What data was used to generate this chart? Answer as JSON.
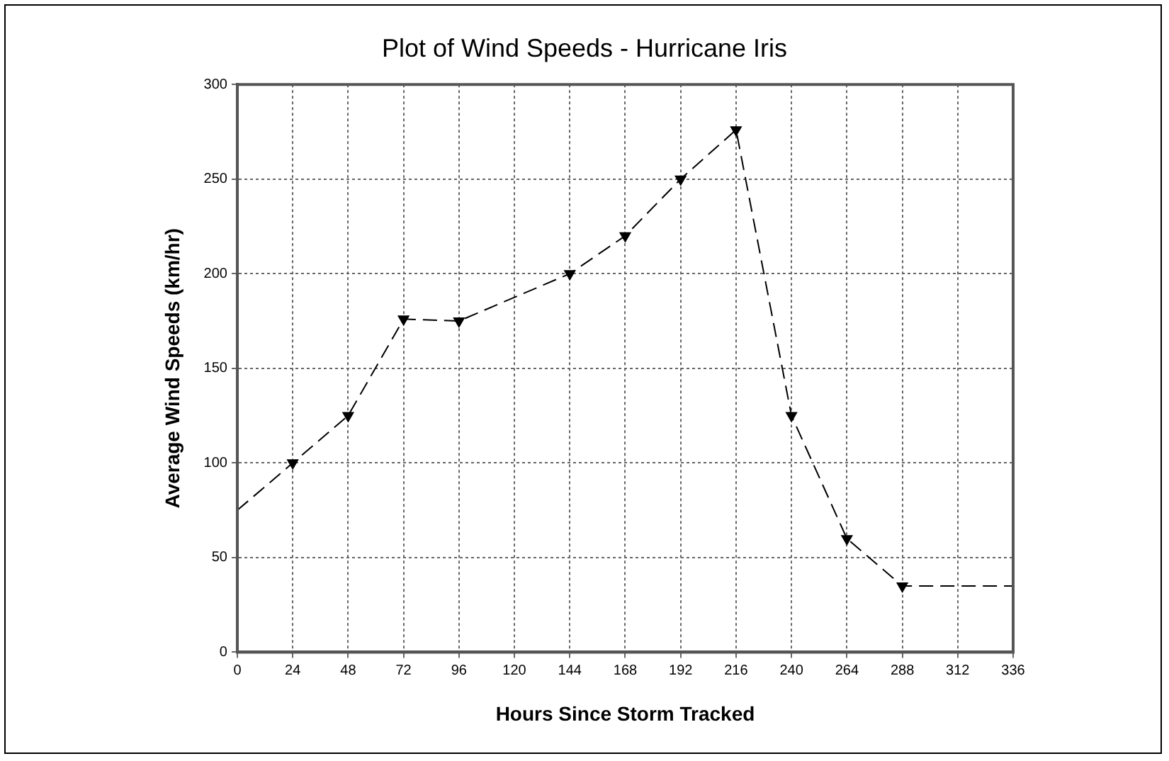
{
  "chart_data": {
    "type": "line",
    "title": "Plot of Wind Speeds - Hurricane Iris",
    "xlabel": "Hours Since Storm Tracked",
    "ylabel": "Average Wind Speeds (km/hr)",
    "xlim": [
      0,
      336
    ],
    "xticks": [
      0,
      24,
      48,
      72,
      96,
      120,
      144,
      168,
      192,
      216,
      240,
      264,
      288,
      312,
      336
    ],
    "ylim": [
      0,
      300
    ],
    "yticks": [
      0,
      50,
      100,
      150,
      200,
      250,
      300
    ],
    "grid": true,
    "legend": false,
    "series": [
      {
        "color": "#000000",
        "marker": "none",
        "line_style": "dashed",
        "x": [
          0,
          24,
          48,
          72,
          96,
          144,
          168,
          192,
          216,
          240,
          264,
          288,
          336
        ],
        "values": [
          75,
          100,
          125,
          176,
          175,
          200,
          220,
          250,
          276,
          125,
          60,
          35,
          35
        ]
      },
      {
        "type": "scatter",
        "color": "#000000",
        "marker": "triangle",
        "x": [
          24,
          48,
          72,
          96,
          144,
          168,
          192,
          216,
          240,
          264,
          288
        ],
        "values": [
          100,
          125,
          176,
          175,
          200,
          220,
          250,
          276,
          125,
          60,
          35
        ]
      }
    ]
  }
}
